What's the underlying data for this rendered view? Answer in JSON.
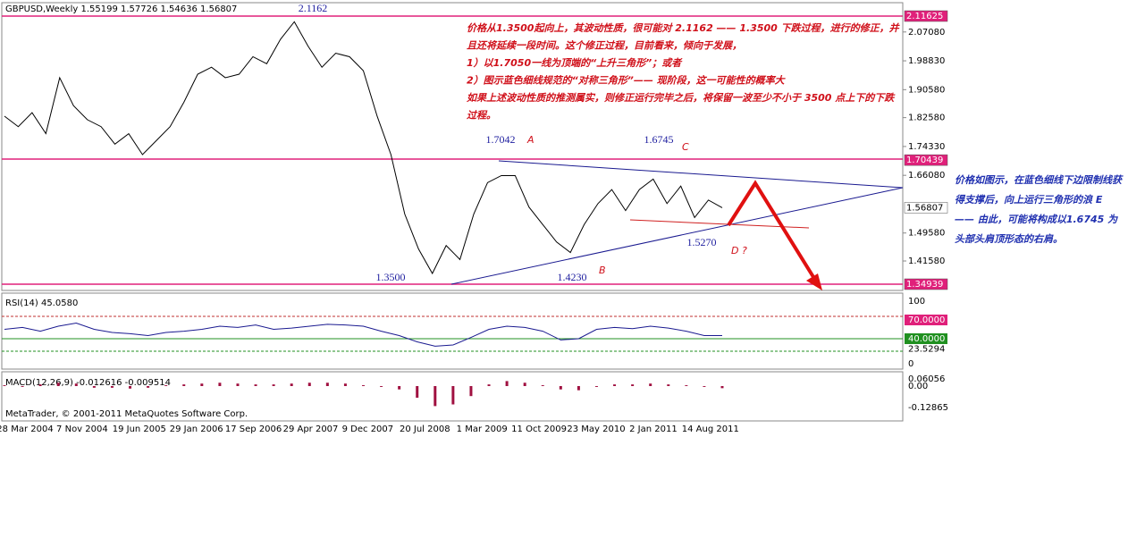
{
  "header": "GBPUSD,Weekly  1.55199 1.57726 1.54636 1.56807",
  "price_pane": {
    "ticks": [
      "2.07080",
      "1.98830",
      "1.90580",
      "1.82580",
      "1.74330",
      "1.66080",
      "1.49580",
      "1.41580"
    ],
    "levels": [
      "2.11625",
      "1.70439",
      "1.56807",
      "1.34939"
    ],
    "close": [
      1.83,
      1.8,
      1.84,
      1.78,
      1.94,
      1.86,
      1.82,
      1.8,
      1.75,
      1.78,
      1.72,
      1.76,
      1.8,
      1.87,
      1.95,
      1.97,
      1.94,
      1.95,
      2.0,
      1.98,
      2.05,
      2.1,
      2.03,
      1.97,
      2.01,
      2.0,
      1.96,
      1.83,
      1.72,
      1.55,
      1.45,
      1.38,
      1.46,
      1.42,
      1.55,
      1.64,
      1.66,
      1.66,
      1.57,
      1.52,
      1.47,
      1.44,
      1.52,
      1.58,
      1.62,
      1.56,
      1.62,
      1.65,
      1.58,
      1.63,
      1.54,
      1.59,
      1.568
    ],
    "points": [
      "2.1162",
      "1.7042",
      "1.6745",
      "1.5270",
      "1.3500",
      "1.4230"
    ],
    "waves": [
      "A",
      "C",
      "D ?",
      "B"
    ],
    "notes": [
      "价格从1.3500起向上，其波动性质，很可能对 2.1162 —— 1.3500 下跌过程，进行的修正，并",
      "且还将延续一段时间。这个修正过程，目前看来，倾向于发展，",
      "1）以1.7050一线为顶端的“上升三角形”；或者",
      "2）图示蓝色细线规范的“对称三角形”—— 现阶段，这一可能性的概率大",
      "如果上述波动性质的推测属实，则修正运行完毕之后，将保留一波至少不小于 3500 点上下的下跌",
      "过程。"
    ]
  },
  "rsi_pane": {
    "title": "RSI(14) 45.0580",
    "ticks": [
      "100",
      "70.0000",
      "40.0000",
      "23.5294",
      "0"
    ],
    "values": [
      55,
      58,
      52,
      60,
      65,
      55,
      50,
      48,
      45,
      50,
      52,
      55,
      60,
      58,
      62,
      55,
      57,
      60,
      63,
      62,
      60,
      52,
      45,
      35,
      28,
      30,
      42,
      55,
      60,
      58,
      52,
      38,
      40,
      55,
      58,
      56,
      60,
      57,
      52,
      45,
      45.058
    ]
  },
  "macd_pane": {
    "title": "MACD(12,26,9) -0.012616 -0.009514",
    "ticks": [
      "0.06056",
      "0.00",
      "-0.12865"
    ],
    "histogram": [
      0.005,
      -0.005,
      0.01,
      0.02,
      0.015,
      -0.01,
      -0.01,
      -0.015,
      -0.01,
      0.005,
      0.01,
      0.015,
      0.02,
      0.015,
      0.01,
      0.01,
      0.015,
      0.02,
      0.02,
      0.015,
      0.005,
      -0.005,
      -0.02,
      -0.07,
      -0.12,
      -0.11,
      -0.06,
      0.01,
      0.03,
      0.02,
      0.005,
      -0.02,
      -0.025,
      -0.005,
      0.01,
      0.01,
      0.015,
      0.01,
      0.005,
      -0.005,
      -0.012616
    ],
    "copyright": "MetaTrader, © 2001-2011 MetaQuotes Software Corp."
  },
  "time_axis": [
    "28 Mar 2004",
    "7 Nov 2004",
    "19 Jun 2005",
    "29 Jan 2006",
    "17 Sep 2006",
    "29 Apr 2007",
    "9 Dec 2007",
    "20 Jul 2008",
    "1 Mar 2009",
    "11 Oct 2009",
    "23 May 2010",
    "2 Jan 2011",
    "14 Aug 2011"
  ],
  "side_note": [
    "价格如图示，在蓝色细线下边限制线获",
    "得支撑后，向上运行三角形的浪 E",
    "—— 由此，可能将构成以1.6745 为",
    "头部头肩顶形态的右肩。"
  ]
}
